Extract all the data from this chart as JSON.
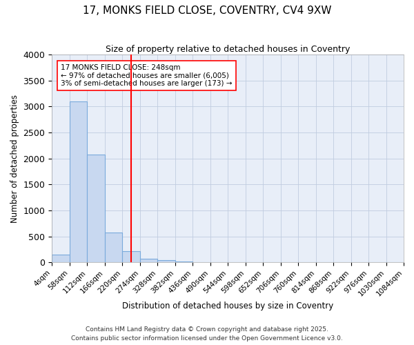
{
  "title_line1": "17, MONKS FIELD CLOSE, COVENTRY, CV4 9XW",
  "title_line2": "Size of property relative to detached houses in Coventry",
  "xlabel": "Distribution of detached houses by size in Coventry",
  "ylabel": "Number of detached properties",
  "bar_edges": [
    4,
    58,
    112,
    166,
    220,
    274,
    328,
    382,
    436,
    490,
    544,
    598,
    652,
    706,
    760,
    814,
    868,
    922,
    976,
    1030,
    1084
  ],
  "bar_heights": [
    150,
    3100,
    2080,
    570,
    220,
    70,
    50,
    20,
    0,
    0,
    0,
    0,
    0,
    0,
    0,
    0,
    0,
    0,
    0,
    0
  ],
  "bar_color": "#c8d8f0",
  "bar_edge_color": "#7aaadc",
  "vline_x": 248,
  "vline_color": "red",
  "annotation_text": "17 MONKS FIELD CLOSE: 248sqm\n← 97% of detached houses are smaller (6,005)\n3% of semi-detached houses are larger (173) →",
  "annotation_box_color": "white",
  "annotation_box_edge": "red",
  "ylim": [
    0,
    4000
  ],
  "yticks": [
    0,
    500,
    1000,
    1500,
    2000,
    2500,
    3000,
    3500,
    4000
  ],
  "tick_labels": [
    "4sqm",
    "58sqm",
    "112sqm",
    "166sqm",
    "220sqm",
    "274sqm",
    "328sqm",
    "382sqm",
    "436sqm",
    "490sqm",
    "544sqm",
    "598sqm",
    "652sqm",
    "706sqm",
    "760sqm",
    "814sqm",
    "868sqm",
    "922sqm",
    "976sqm",
    "1030sqm",
    "1084sqm"
  ],
  "footer_line1": "Contains HM Land Registry data © Crown copyright and database right 2025.",
  "footer_line2": "Contains public sector information licensed under the Open Government Licence v3.0.",
  "bg_color": "#ffffff",
  "plot_bg_color": "#e8eef8",
  "grid_color": "#c0cce0",
  "title_fontsize": 11,
  "subtitle_fontsize": 9,
  "axis_label_fontsize": 8.5,
  "tick_fontsize": 7.5,
  "annotation_fontsize": 7.5,
  "footer_fontsize": 6.5
}
